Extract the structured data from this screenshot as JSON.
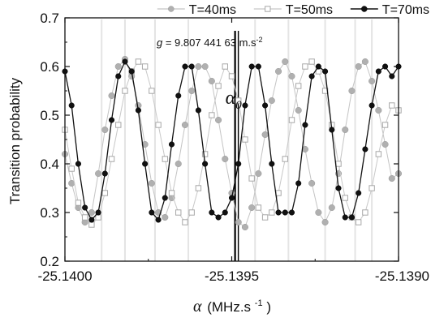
{
  "chart_data": {
    "type": "scatter",
    "title": "",
    "xlabel": "α (MHz.s⁻¹)",
    "xlabel_symbol": "α",
    "xlabel_unit_text": "(MHz.s",
    "xlabel_unit_exp": "-1",
    "xlabel_unit_close": ")",
    "ylabel": "Transition probability",
    "xlim": [
      -25.14,
      -25.139
    ],
    "ylim": [
      0.2,
      0.7
    ],
    "x_ticks": [
      -25.14,
      -25.1395,
      -25.139
    ],
    "x_tick_labels": [
      "-25.1400",
      "-25.1395",
      "-25.1390"
    ],
    "y_ticks": [
      0.2,
      0.3,
      0.4,
      0.5,
      0.6,
      0.7
    ],
    "y_tick_labels": [
      "0.2",
      "0.3",
      "0.4",
      "0.5",
      "0.6",
      "0.7"
    ],
    "grid": false,
    "legend_position": "top",
    "annotations": [
      {
        "text_italic": "g",
        "text": " = 9.807 441 63 m.s",
        "exp": "-2",
        "x": -25.13952
      },
      {
        "symbol": "α",
        "sub": "0",
        "x": -25.13949
      }
    ],
    "series": [
      {
        "name": "T=40ms",
        "marker": "circle-filled",
        "color": "#b0b0b0",
        "line_color": "#c4c4c4",
        "x": [
          -25.14,
          -25.13998,
          -25.13996,
          -25.13994,
          -25.13992,
          -25.1399,
          -25.13988,
          -25.13986,
          -25.13984,
          -25.13982,
          -25.1398,
          -25.13978,
          -25.13976,
          -25.13974,
          -25.13972,
          -25.1397,
          -25.13968,
          -25.13966,
          -25.13964,
          -25.13962,
          -25.1396,
          -25.13958,
          -25.13956,
          -25.13954,
          -25.13952,
          -25.1395,
          -25.13948,
          -25.13946,
          -25.13944,
          -25.13942,
          -25.1394,
          -25.13938,
          -25.13936,
          -25.13934,
          -25.13932,
          -25.1393,
          -25.13928,
          -25.13926,
          -25.13924,
          -25.13922,
          -25.1392,
          -25.13918,
          -25.13916,
          -25.13914,
          -25.13912,
          -25.1391,
          -25.13908,
          -25.13906,
          -25.13904,
          -25.13902,
          -25.139
        ],
        "y": [
          0.42,
          0.36,
          0.31,
          0.28,
          0.3,
          0.38,
          0.47,
          0.54,
          0.6,
          0.615,
          0.58,
          0.52,
          0.44,
          0.36,
          0.3,
          0.29,
          0.33,
          0.4,
          0.48,
          0.55,
          0.6,
          0.6,
          0.57,
          0.49,
          0.41,
          0.34,
          0.28,
          0.27,
          0.31,
          0.38,
          0.46,
          0.53,
          0.59,
          0.61,
          0.58,
          0.51,
          0.43,
          0.36,
          0.3,
          0.28,
          0.31,
          0.38,
          0.47,
          0.55,
          0.6,
          0.61,
          0.57,
          0.51,
          0.44,
          0.37,
          0.38
        ]
      },
      {
        "name": "T=50ms",
        "marker": "square-open",
        "color": "#a8a8a8",
        "line_color": "#c8c8c8",
        "x": [
          -25.14,
          -25.13998,
          -25.13996,
          -25.13994,
          -25.13992,
          -25.1399,
          -25.13988,
          -25.13986,
          -25.13984,
          -25.13982,
          -25.1398,
          -25.13978,
          -25.13976,
          -25.13974,
          -25.13972,
          -25.1397,
          -25.13968,
          -25.13966,
          -25.13964,
          -25.13962,
          -25.1396,
          -25.13958,
          -25.13956,
          -25.13954,
          -25.13952,
          -25.1395,
          -25.13948,
          -25.13946,
          -25.13944,
          -25.13942,
          -25.1394,
          -25.13938,
          -25.13936,
          -25.13934,
          -25.13932,
          -25.1393,
          -25.13928,
          -25.13926,
          -25.13924,
          -25.13922,
          -25.1392,
          -25.13918,
          -25.13916,
          -25.13914,
          -25.13912,
          -25.1391,
          -25.13908,
          -25.13906,
          -25.13904,
          -25.13902,
          -25.139
        ],
        "y": [
          0.47,
          0.39,
          0.32,
          0.29,
          0.275,
          0.29,
          0.34,
          0.41,
          0.48,
          0.55,
          0.59,
          0.61,
          0.6,
          0.55,
          0.48,
          0.41,
          0.34,
          0.3,
          0.28,
          0.3,
          0.35,
          0.42,
          0.5,
          0.56,
          0.6,
          0.58,
          0.53,
          0.45,
          0.37,
          0.31,
          0.29,
          0.3,
          0.34,
          0.41,
          0.49,
          0.56,
          0.6,
          0.61,
          0.59,
          0.55,
          0.48,
          0.4,
          0.33,
          0.29,
          0.28,
          0.3,
          0.35,
          0.42,
          0.48,
          0.52,
          0.51
        ]
      },
      {
        "name": "T=70ms",
        "marker": "circle-filled",
        "color": "#111111",
        "line_color": "#111111",
        "x": [
          -25.14,
          -25.13998,
          -25.13996,
          -25.13994,
          -25.13992,
          -25.1399,
          -25.13988,
          -25.13986,
          -25.13984,
          -25.13982,
          -25.1398,
          -25.13978,
          -25.13976,
          -25.13974,
          -25.13972,
          -25.1397,
          -25.13968,
          -25.13966,
          -25.13964,
          -25.13962,
          -25.1396,
          -25.13958,
          -25.13956,
          -25.13954,
          -25.13952,
          -25.1395,
          -25.13948,
          -25.13946,
          -25.13944,
          -25.13942,
          -25.1394,
          -25.13938,
          -25.13936,
          -25.13934,
          -25.13932,
          -25.1393,
          -25.13928,
          -25.13926,
          -25.13924,
          -25.13922,
          -25.1392,
          -25.13918,
          -25.13916,
          -25.13914,
          -25.13912,
          -25.1391,
          -25.13908,
          -25.13906,
          -25.13904,
          -25.13902,
          -25.139
        ],
        "y": [
          0.59,
          0.52,
          0.4,
          0.31,
          0.285,
          0.3,
          0.38,
          0.49,
          0.58,
          0.61,
          0.59,
          0.51,
          0.4,
          0.3,
          0.285,
          0.33,
          0.44,
          0.54,
          0.6,
          0.6,
          0.51,
          0.4,
          0.3,
          0.29,
          0.3,
          0.33,
          0.4,
          0.52,
          0.6,
          0.6,
          0.52,
          0.4,
          0.3,
          0.3,
          0.3,
          0.36,
          0.48,
          0.58,
          0.6,
          0.59,
          0.47,
          0.35,
          0.29,
          0.29,
          0.34,
          0.43,
          0.52,
          0.59,
          0.6,
          0.58,
          0.6
        ]
      }
    ]
  }
}
